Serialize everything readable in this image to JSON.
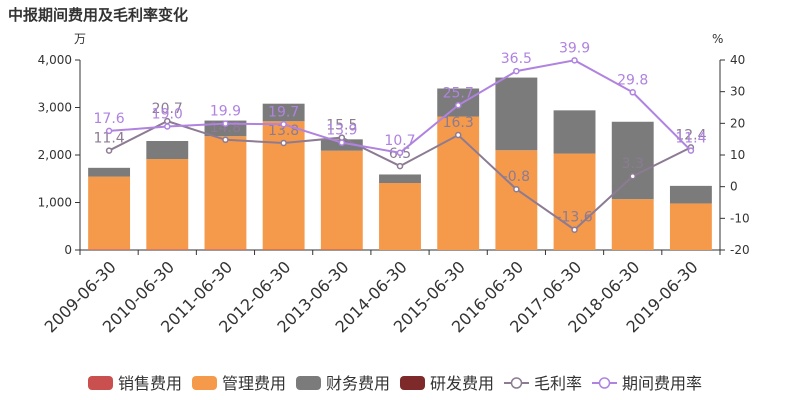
{
  "chart_data": {
    "type": "bar",
    "title": "中报期间费用及毛利率变化",
    "left_unit": "万",
    "right_unit": "%",
    "categories": [
      "2009-06-30",
      "2010-06-30",
      "2011-06-30",
      "2012-06-30",
      "2013-06-30",
      "2014-06-30",
      "2015-06-30",
      "2016-06-30",
      "2017-06-30",
      "2018-06-30",
      "2019-06-30"
    ],
    "left_axis": {
      "min": 0,
      "max": 4000,
      "ticks": [
        0,
        1000,
        2000,
        3000,
        4000
      ],
      "tick_labels": [
        "0",
        "1,000",
        "2,000",
        "3,000",
        "4,000"
      ]
    },
    "right_axis": {
      "min": -20,
      "max": 40,
      "ticks": [
        -20,
        -10,
        0,
        10,
        20,
        30,
        40
      ],
      "tick_labels": [
        "-20",
        "-10",
        "0",
        "10",
        "20",
        "30",
        "40"
      ]
    },
    "stacked": true,
    "bar_series": [
      {
        "name": "销售费用",
        "color": "#c9504f",
        "values": [
          15,
          15,
          15,
          10,
          10,
          0,
          0,
          0,
          0,
          0,
          0
        ]
      },
      {
        "name": "管理费用",
        "color": "#f59a4a",
        "values": [
          1530,
          1900,
          2380,
          2700,
          2080,
          1410,
          2810,
          2100,
          2030,
          1070,
          980
        ]
      },
      {
        "name": "财务费用",
        "color": "#7b7b7b",
        "values": [
          185,
          380,
          330,
          370,
          240,
          180,
          590,
          1530,
          910,
          1630,
          370
        ]
      },
      {
        "name": "研发费用",
        "color": "#7e2a2a",
        "values": [
          0,
          0,
          0,
          0,
          0,
          0,
          0,
          0,
          0,
          0,
          0
        ]
      }
    ],
    "line_series": [
      {
        "name": "毛利率",
        "color": "#8c7b93",
        "values": [
          11.4,
          20.7,
          14.8,
          13.8,
          15.5,
          6.5,
          16.3,
          -0.8,
          -13.6,
          3.3,
          12.4
        ],
        "labels": [
          "11.4",
          "20.7",
          "14.8",
          "13.8",
          "15.5",
          "6.5",
          "16.3",
          "-0.8",
          "-13.6",
          "3.3",
          "12.4"
        ]
      },
      {
        "name": "期间费用率",
        "color": "#b083e0",
        "values": [
          17.6,
          19.0,
          19.9,
          19.7,
          13.9,
          10.7,
          25.7,
          36.5,
          39.9,
          29.8,
          11.4
        ],
        "labels": [
          "17.6",
          "19.0",
          "19.9",
          "19.7",
          "13.9",
          "10.7",
          "25.7",
          "36.5",
          "39.9",
          "29.8",
          "11.4"
        ]
      }
    ],
    "legend_position": "bottom",
    "grid": false
  }
}
